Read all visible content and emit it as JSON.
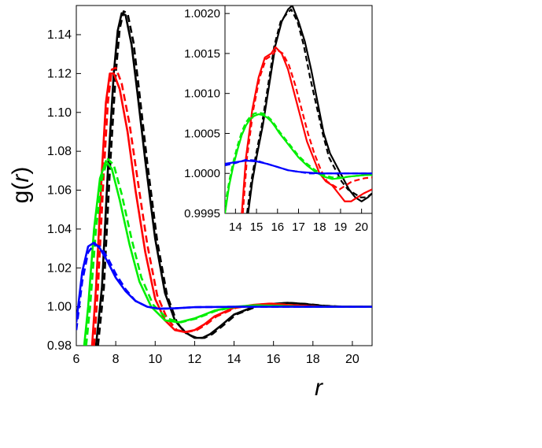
{
  "chart_data": [
    {
      "type": "line",
      "xlabel": "r",
      "ylabel": "g(r)",
      "xlim": [
        6,
        21
      ],
      "ylim": [
        0.98,
        1.155
      ],
      "xticks": [
        "6",
        "8",
        "10",
        "12",
        "14",
        "16",
        "18",
        "20"
      ],
      "yticks": [
        "0.98",
        "1.00",
        "1.02",
        "1.04",
        "1.06",
        "1.08",
        "1.10",
        "1.12",
        "1.14"
      ],
      "grid": false,
      "legend": "none",
      "series": [
        {
          "color": "#000000",
          "style": "solid",
          "x": [
            7.0,
            7.3,
            7.6,
            7.9,
            8.1,
            8.3,
            8.5,
            8.8,
            9.1,
            9.5,
            10.0,
            10.5,
            11.0,
            11.5,
            12.0,
            12.4,
            12.8,
            13.3,
            14.0,
            15.0,
            16.0,
            16.7,
            17.5,
            18.5,
            19.5,
            21.0
          ],
          "y": [
            0.98,
            1.01,
            1.07,
            1.12,
            1.142,
            1.151,
            1.15,
            1.135,
            1.11,
            1.075,
            1.035,
            1.007,
            0.993,
            0.987,
            0.984,
            0.984,
            0.986,
            0.99,
            0.996,
            1.0,
            1.0015,
            1.002,
            1.0015,
            1.0005,
            1.0,
            1.0
          ]
        },
        {
          "color": "#000000",
          "style": "dashed",
          "x": [
            7.1,
            7.4,
            7.7,
            8.0,
            8.2,
            8.4,
            8.6,
            8.9,
            9.2,
            9.6,
            10.1,
            10.6,
            11.1,
            11.6,
            12.1,
            12.5,
            12.9,
            13.4,
            14.1,
            15.1,
            16.1,
            16.8,
            17.6,
            18.6,
            19.6,
            21.0
          ],
          "y": [
            0.98,
            1.01,
            1.07,
            1.12,
            1.143,
            1.152,
            1.151,
            1.136,
            1.11,
            1.074,
            1.034,
            1.006,
            0.992,
            0.986,
            0.984,
            0.984,
            0.986,
            0.99,
            0.996,
            1.0,
            1.0015,
            1.002,
            1.0015,
            1.0005,
            1.0,
            1.0
          ]
        },
        {
          "color": "#ff0000",
          "style": "solid",
          "x": [
            6.8,
            7.0,
            7.3,
            7.5,
            7.7,
            7.9,
            8.2,
            8.6,
            9.0,
            9.5,
            10.0,
            10.5,
            11.0,
            11.5,
            12.0,
            12.5,
            13.0,
            14.0,
            15.0,
            15.8,
            17.0,
            18.5,
            21.0
          ],
          "y": [
            0.98,
            1.01,
            1.07,
            1.105,
            1.12,
            1.12,
            1.112,
            1.09,
            1.06,
            1.028,
            1.004,
            0.993,
            0.988,
            0.987,
            0.988,
            0.991,
            0.995,
            0.9995,
            1.001,
            1.0016,
            1.0007,
            1.0,
            1.0
          ]
        },
        {
          "color": "#ff0000",
          "style": "dashed",
          "x": [
            6.9,
            7.1,
            7.4,
            7.6,
            7.8,
            8.0,
            8.3,
            8.7,
            9.1,
            9.6,
            10.1,
            10.6,
            11.1,
            11.6,
            12.1,
            12.6,
            13.1,
            14.1,
            15.1,
            15.9,
            17.1,
            18.6,
            21.0
          ],
          "y": [
            0.98,
            1.01,
            1.07,
            1.105,
            1.122,
            1.123,
            1.115,
            1.094,
            1.066,
            1.032,
            1.006,
            0.994,
            0.988,
            0.987,
            0.988,
            0.991,
            0.995,
            0.9995,
            1.001,
            1.0016,
            1.0007,
            1.0,
            1.0
          ]
        },
        {
          "color": "#00ee00",
          "style": "solid",
          "x": [
            6.4,
            6.6,
            6.9,
            7.2,
            7.5,
            7.8,
            8.2,
            8.7,
            9.2,
            9.8,
            10.5,
            11.2,
            12.0,
            13.0,
            14.0,
            15.0,
            16.0,
            17.5,
            21.0
          ],
          "y": [
            0.98,
            1.0,
            1.04,
            1.066,
            1.075,
            1.071,
            1.055,
            1.032,
            1.013,
            1.0,
            0.993,
            0.992,
            0.994,
            0.998,
            1.0,
            1.0007,
            1.0005,
            1.0,
            1.0
          ]
        },
        {
          "color": "#00ee00",
          "style": "dashed",
          "x": [
            6.5,
            6.7,
            7.0,
            7.3,
            7.6,
            7.9,
            8.3,
            8.8,
            9.3,
            9.9,
            10.6,
            11.3,
            12.1,
            13.1,
            14.1,
            15.1,
            16.1,
            17.6,
            21.0
          ],
          "y": [
            0.98,
            1.0,
            1.04,
            1.066,
            1.076,
            1.073,
            1.058,
            1.035,
            1.015,
            1.001,
            0.994,
            0.992,
            0.994,
            0.998,
            1.0,
            1.0007,
            1.0005,
            1.0,
            1.0
          ]
        },
        {
          "color": "#0000ff",
          "style": "solid",
          "x": [
            6.0,
            6.3,
            6.6,
            6.9,
            7.2,
            7.6,
            8.0,
            8.5,
            9.0,
            9.6,
            10.2,
            11.0,
            12.0,
            14.0,
            21.0
          ],
          "y": [
            0.992,
            1.018,
            1.031,
            1.033,
            1.03,
            1.023,
            1.015,
            1.008,
            1.003,
            1.0,
            0.999,
            0.9992,
            0.9998,
            1.0,
            1.0
          ]
        },
        {
          "color": "#0000ff",
          "style": "dashed",
          "x": [
            6.0,
            6.3,
            6.6,
            6.9,
            7.2,
            7.6,
            8.0,
            8.5,
            9.0,
            9.6,
            10.2,
            11.0,
            12.0,
            14.0,
            21.0
          ],
          "y": [
            0.988,
            1.013,
            1.028,
            1.032,
            1.031,
            1.025,
            1.017,
            1.009,
            1.003,
            1.0,
            0.999,
            0.9992,
            0.9998,
            1.0,
            1.0
          ]
        }
      ]
    },
    {
      "type": "line",
      "xlim": [
        13.5,
        20.5
      ],
      "ylim": [
        0.9995,
        1.0021
      ],
      "xticks": [
        "14",
        "15",
        "16",
        "17",
        "18",
        "19",
        "20"
      ],
      "yticks": [
        "0.9995",
        "1.0000",
        "1.0005",
        "1.0010",
        "1.0015",
        "1.0020"
      ],
      "grid": false,
      "legend": "none",
      "series": [
        {
          "color": "#000000",
          "style": "solid",
          "x": [
            14.6,
            14.8,
            15.0,
            15.3,
            15.6,
            15.9,
            16.2,
            16.5,
            16.7,
            17.0,
            17.3,
            17.6,
            17.9,
            18.2,
            18.5,
            18.8,
            19.1,
            19.4,
            19.7,
            20.0,
            20.3,
            20.5
          ],
          "y": [
            0.9995,
            0.9999,
            1.0002,
            1.0006,
            1.0011,
            1.0016,
            1.0019,
            1.00205,
            1.0021,
            1.0019,
            1.00165,
            1.0013,
            1.0009,
            1.0005,
            1.00025,
            1.0001,
            0.99995,
            0.9998,
            0.9997,
            0.99965,
            0.9997,
            0.99975
          ]
        },
        {
          "color": "#000000",
          "style": "dashed",
          "x": [
            14.55,
            14.75,
            14.95,
            15.25,
            15.55,
            15.85,
            16.15,
            16.45,
            16.65,
            16.95,
            17.25,
            17.55,
            17.85,
            18.15,
            18.45,
            18.75,
            19.05,
            19.35,
            19.65,
            19.95,
            20.25,
            20.5
          ],
          "y": [
            0.9995,
            0.9999,
            1.0002,
            1.0006,
            1.0011,
            1.0016,
            1.0019,
            1.002,
            1.00205,
            1.0019,
            1.0016,
            1.0012,
            1.00085,
            1.0005,
            1.0002,
            1.00005,
            0.9999,
            0.9998,
            0.99975,
            0.9997,
            0.9997,
            0.99975
          ]
        },
        {
          "color": "#ff0000",
          "style": "solid",
          "x": [
            14.3,
            14.5,
            14.8,
            15.1,
            15.4,
            15.7,
            15.9,
            16.2,
            16.5,
            16.8,
            17.1,
            17.4,
            17.7,
            18.0,
            18.3,
            18.6,
            18.9,
            19.2,
            19.5,
            19.8,
            20.1,
            20.5
          ],
          "y": [
            0.9995,
            1.0002,
            1.0008,
            1.0012,
            1.00145,
            1.0015,
            1.00158,
            1.0015,
            1.0013,
            1.001,
            1.0007,
            1.0004,
            1.0002,
            1.0,
            0.9999,
            0.99985,
            0.99975,
            0.99965,
            0.99965,
            0.9997,
            0.99975,
            0.9998
          ]
        },
        {
          "color": "#ff0000",
          "style": "dashed",
          "x": [
            14.35,
            14.55,
            14.85,
            15.15,
            15.45,
            15.75,
            15.95,
            16.25,
            16.55,
            16.85,
            17.15,
            17.45,
            17.75,
            18.05,
            18.35,
            18.65,
            18.95,
            19.25,
            19.55,
            19.85,
            20.15,
            20.5
          ],
          "y": [
            0.9995,
            1.0002,
            1.0008,
            1.0012,
            1.00143,
            1.00148,
            1.00155,
            1.0015,
            1.00135,
            1.0011,
            1.0008,
            1.0005,
            1.00025,
            1.00005,
            0.9999,
            0.99985,
            0.9998,
            0.99985,
            0.9999,
            0.99992,
            0.99994,
            0.99995
          ]
        },
        {
          "color": "#00ee00",
          "style": "solid",
          "x": [
            13.5,
            13.7,
            13.9,
            14.1,
            14.3,
            14.5,
            14.7,
            14.9,
            15.1,
            15.3,
            15.5,
            15.7,
            15.9,
            16.1,
            16.4,
            16.7,
            17.0,
            17.4,
            17.8,
            18.2,
            18.6,
            19.0,
            19.4,
            19.8,
            20.2,
            20.5
          ],
          "y": [
            0.9995,
            0.99985,
            1.0001,
            1.0003,
            1.00048,
            1.0006,
            1.00068,
            1.00072,
            1.00074,
            1.00073,
            1.0007,
            1.00065,
            1.00058,
            1.0005,
            1.0004,
            1.0003,
            1.0002,
            1.0001,
            1.00002,
            0.99996,
            0.99993,
            0.99994,
            0.99996,
            0.99997,
            0.99998,
            0.99998
          ]
        },
        {
          "color": "#00ee00",
          "style": "dashed",
          "x": [
            13.5,
            13.7,
            13.9,
            14.1,
            14.3,
            14.5,
            14.7,
            14.9,
            15.1,
            15.3,
            15.5,
            15.7,
            15.9,
            16.1,
            16.4,
            16.7,
            17.0,
            17.4,
            17.8,
            18.2,
            18.6,
            19.0,
            19.4,
            19.8,
            20.2,
            20.5
          ],
          "y": [
            0.9996,
            0.9999,
            1.00015,
            1.00035,
            1.00052,
            1.00064,
            1.00071,
            1.00075,
            1.00076,
            1.00075,
            1.00072,
            1.00067,
            1.0006,
            1.00052,
            1.00042,
            1.00032,
            1.00022,
            1.00012,
            1.00004,
            0.99998,
            0.99995,
            0.99995,
            0.99996,
            0.99997,
            0.99998,
            0.99998
          ]
        },
        {
          "color": "#0000ff",
          "style": "solid",
          "x": [
            13.5,
            14.0,
            14.5,
            15.0,
            15.5,
            16.0,
            16.5,
            17.0,
            17.5,
            18.0,
            18.5,
            19.0,
            19.5,
            20.0,
            20.5
          ],
          "y": [
            1.00012,
            1.00014,
            1.00016,
            1.00015,
            1.00012,
            1.00008,
            1.00004,
            1.00002,
            1.00001,
            1.0,
            1.0,
            1.0,
            1.0,
            1.0,
            1.0
          ]
        },
        {
          "color": "#0000ff",
          "style": "dashed",
          "x": [
            13.5,
            14.0,
            14.5,
            15.0,
            15.5,
            16.0,
            16.5,
            17.0,
            17.5,
            18.0,
            18.5,
            19.0,
            19.5,
            20.0,
            20.5
          ],
          "y": [
            1.0001,
            1.00013,
            1.00017,
            1.00016,
            1.00012,
            1.00008,
            1.00004,
            1.00002,
            1.0,
            1.0,
            1.0,
            1.0,
            1.0,
            1.0,
            1.0
          ]
        }
      ]
    }
  ]
}
